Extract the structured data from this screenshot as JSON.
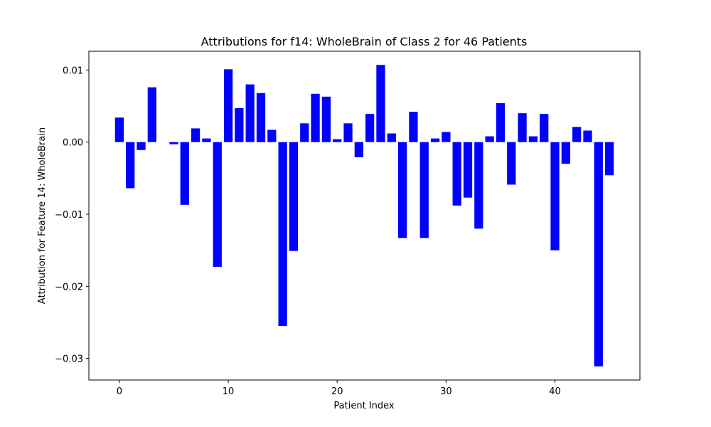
{
  "chart_data": {
    "type": "bar",
    "title": "Attributions for f14: WholeBrain of Class 2 for 46 Patients",
    "xlabel": "Patient Index",
    "ylabel": "Attribution for Feature 14: WholeBrain",
    "x": [
      0,
      1,
      2,
      3,
      4,
      5,
      6,
      7,
      8,
      9,
      10,
      11,
      12,
      13,
      14,
      15,
      16,
      17,
      18,
      19,
      20,
      21,
      22,
      23,
      24,
      25,
      26,
      27,
      28,
      29,
      30,
      31,
      32,
      33,
      34,
      35,
      36,
      37,
      38,
      39,
      40,
      41,
      42,
      43,
      44,
      45
    ],
    "values": [
      0.0034,
      -0.0064,
      -0.0011,
      0.0076,
      0.0,
      -0.0003,
      -0.0087,
      0.0019,
      0.0005,
      -0.0173,
      0.0101,
      0.0047,
      0.008,
      0.0068,
      0.0017,
      -0.0255,
      -0.0151,
      0.0026,
      0.0067,
      0.0063,
      0.0004,
      0.0026,
      -0.0021,
      0.0039,
      0.0107,
      0.0012,
      -0.0133,
      0.0042,
      -0.0133,
      0.0005,
      0.0014,
      -0.0088,
      -0.0077,
      -0.012,
      0.0008,
      0.0054,
      -0.0059,
      0.004,
      0.0008,
      0.0039,
      -0.015,
      -0.003,
      0.0021,
      0.0016,
      -0.0311,
      -0.0046
    ],
    "xlim": [
      -2.8,
      47.8
    ],
    "ylim": [
      -0.033,
      0.0126
    ],
    "xticks": [
      0,
      10,
      20,
      30,
      40
    ],
    "xtick_labels": [
      "0",
      "10",
      "20",
      "30",
      "40"
    ],
    "yticks": [
      0.01,
      0.0,
      -0.01,
      -0.02,
      -0.03
    ],
    "ytick_labels": [
      "0.01",
      "0.00",
      "−0.01",
      "−0.02",
      "−0.03"
    ],
    "bar_color": "#0000ff",
    "grid": false,
    "legend": "none"
  }
}
